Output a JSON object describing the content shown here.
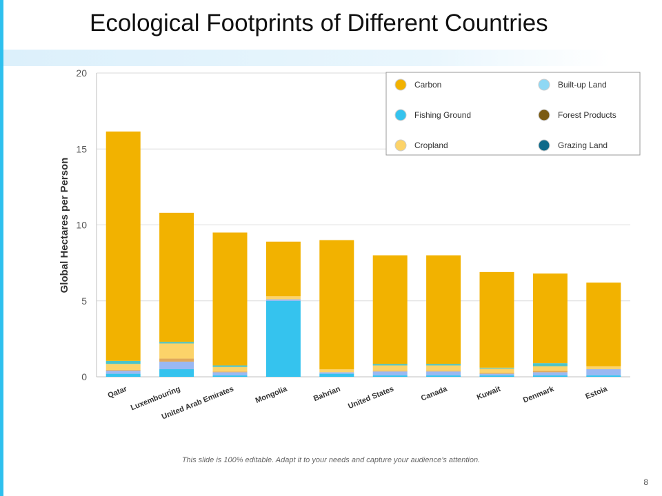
{
  "slide": {
    "title": "Ecological Footprints of Different Countries",
    "footer_note": "This slide is 100% editable. Adapt it to your needs and capture your audience’s attention.",
    "page_number": "8",
    "accent_color": "#2ec0ee"
  },
  "chart_data": {
    "type": "bar",
    "stacked": true,
    "ylabel": "Global Hectares per Person",
    "ylim": [
      0,
      20
    ],
    "yticks": [
      0,
      5,
      10,
      15,
      20
    ],
    "grid": true,
    "legend_position": "top-right",
    "categories": [
      "Qatar",
      "Luxembouring",
      "United Arab Emirates",
      "Mongolia",
      "Bahrian",
      "United States",
      "Canada",
      "Kuwait",
      "Denmark",
      "Estoia"
    ],
    "series": [
      {
        "name": "Fishing Ground",
        "color": "#35c3ee",
        "values": [
          0.2,
          0.5,
          0.1,
          5.0,
          0.2,
          0.1,
          0.1,
          0.1,
          0.1,
          0.1
        ]
      },
      {
        "name": "Built-up Land",
        "color": "#9ab8f2",
        "values": [
          0.2,
          0.5,
          0.2,
          0.1,
          0.1,
          0.25,
          0.25,
          0.1,
          0.2,
          0.4
        ]
      },
      {
        "name": "Forest Products",
        "color": "#e0a85a",
        "values": [
          0.05,
          0.2,
          0.05,
          0.0,
          0.0,
          0.05,
          0.05,
          0.05,
          0.1,
          0.0
        ]
      },
      {
        "name": "Cropland",
        "color": "#fcd369",
        "values": [
          0.4,
          1.0,
          0.3,
          0.2,
          0.2,
          0.35,
          0.35,
          0.3,
          0.3,
          0.2
        ]
      },
      {
        "name": "Grazing Land",
        "color": "#4cc4c8",
        "values": [
          0.2,
          0.1,
          0.1,
          0.0,
          0.0,
          0.1,
          0.1,
          0.05,
          0.2,
          0.0
        ]
      },
      {
        "name": "Carbon",
        "color": "#f2b200",
        "values": [
          15.1,
          8.5,
          8.75,
          3.6,
          8.5,
          7.15,
          7.15,
          6.3,
          5.9,
          5.5
        ]
      }
    ],
    "legend": [
      {
        "name": "Carbon",
        "color": "#f2b200"
      },
      {
        "name": "Built-up Land",
        "color": "#8fd8f4"
      },
      {
        "name": "Fishing Ground",
        "color": "#35c3ee"
      },
      {
        "name": "Forest Products",
        "color": "#7a5a12"
      },
      {
        "name": "Cropland",
        "color": "#fcd369"
      },
      {
        "name": "Grazing Land",
        "color": "#0e6a8a"
      }
    ]
  }
}
